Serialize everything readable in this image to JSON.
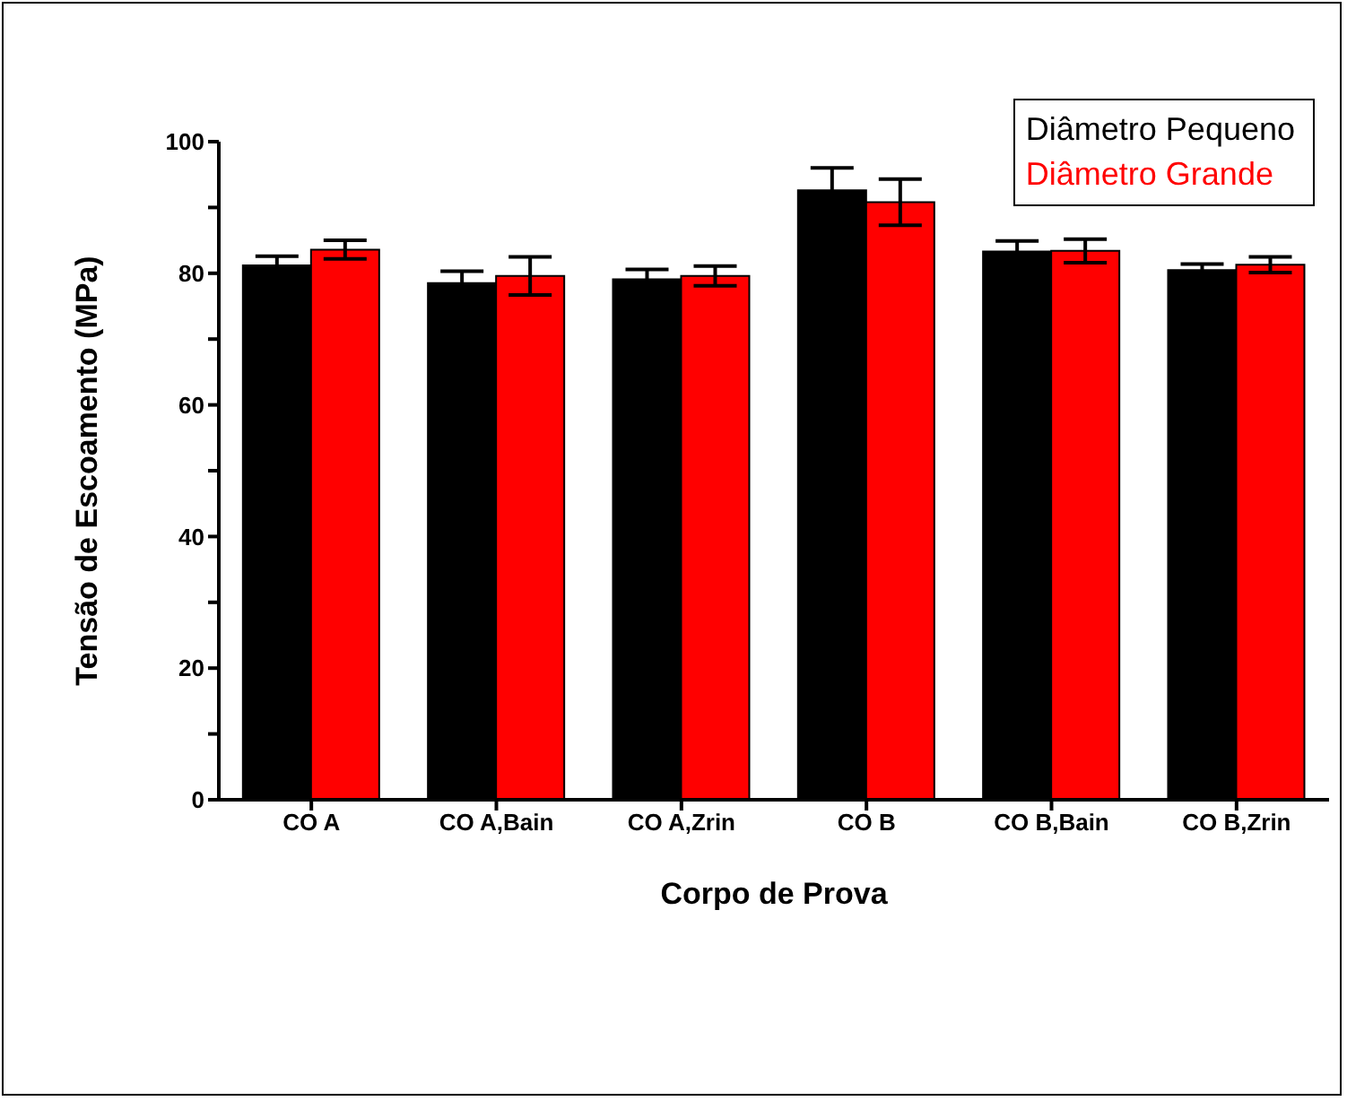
{
  "chart_data": {
    "type": "bar",
    "xlabel": "Corpo de Prova",
    "ylabel": "Tensão de Escoamento (MPa)",
    "categories": [
      "CO A",
      "CO A,Bain",
      "CO A,Zrin",
      "CO B",
      "CO B,Bain",
      "CO B,Zrin"
    ],
    "series": [
      {
        "name": "Diâmetro Pequeno",
        "color": "#000000",
        "values": [
          81.2,
          78.5,
          79.1,
          92.6,
          83.3,
          80.5
        ],
        "errors": [
          1.4,
          1.8,
          1.5,
          3.4,
          1.6,
          0.9
        ]
      },
      {
        "name": "Diâmetro Grande",
        "color": "#ff0000",
        "values": [
          83.6,
          79.6,
          79.6,
          90.8,
          83.4,
          81.3
        ],
        "errors": [
          1.4,
          2.9,
          1.5,
          3.5,
          1.8,
          1.2
        ]
      }
    ],
    "ylim": [
      0,
      100
    ],
    "yticks": [
      0,
      {
        "value": 10,
        "label": null
      },
      20,
      {
        "value": 30,
        "label": null
      },
      40,
      {
        "value": 50,
        "label": null
      },
      60,
      {
        "value": 70,
        "label": null
      },
      80,
      {
        "value": 90,
        "label": null
      },
      100
    ],
    "grid": false,
    "legend": "top right"
  }
}
